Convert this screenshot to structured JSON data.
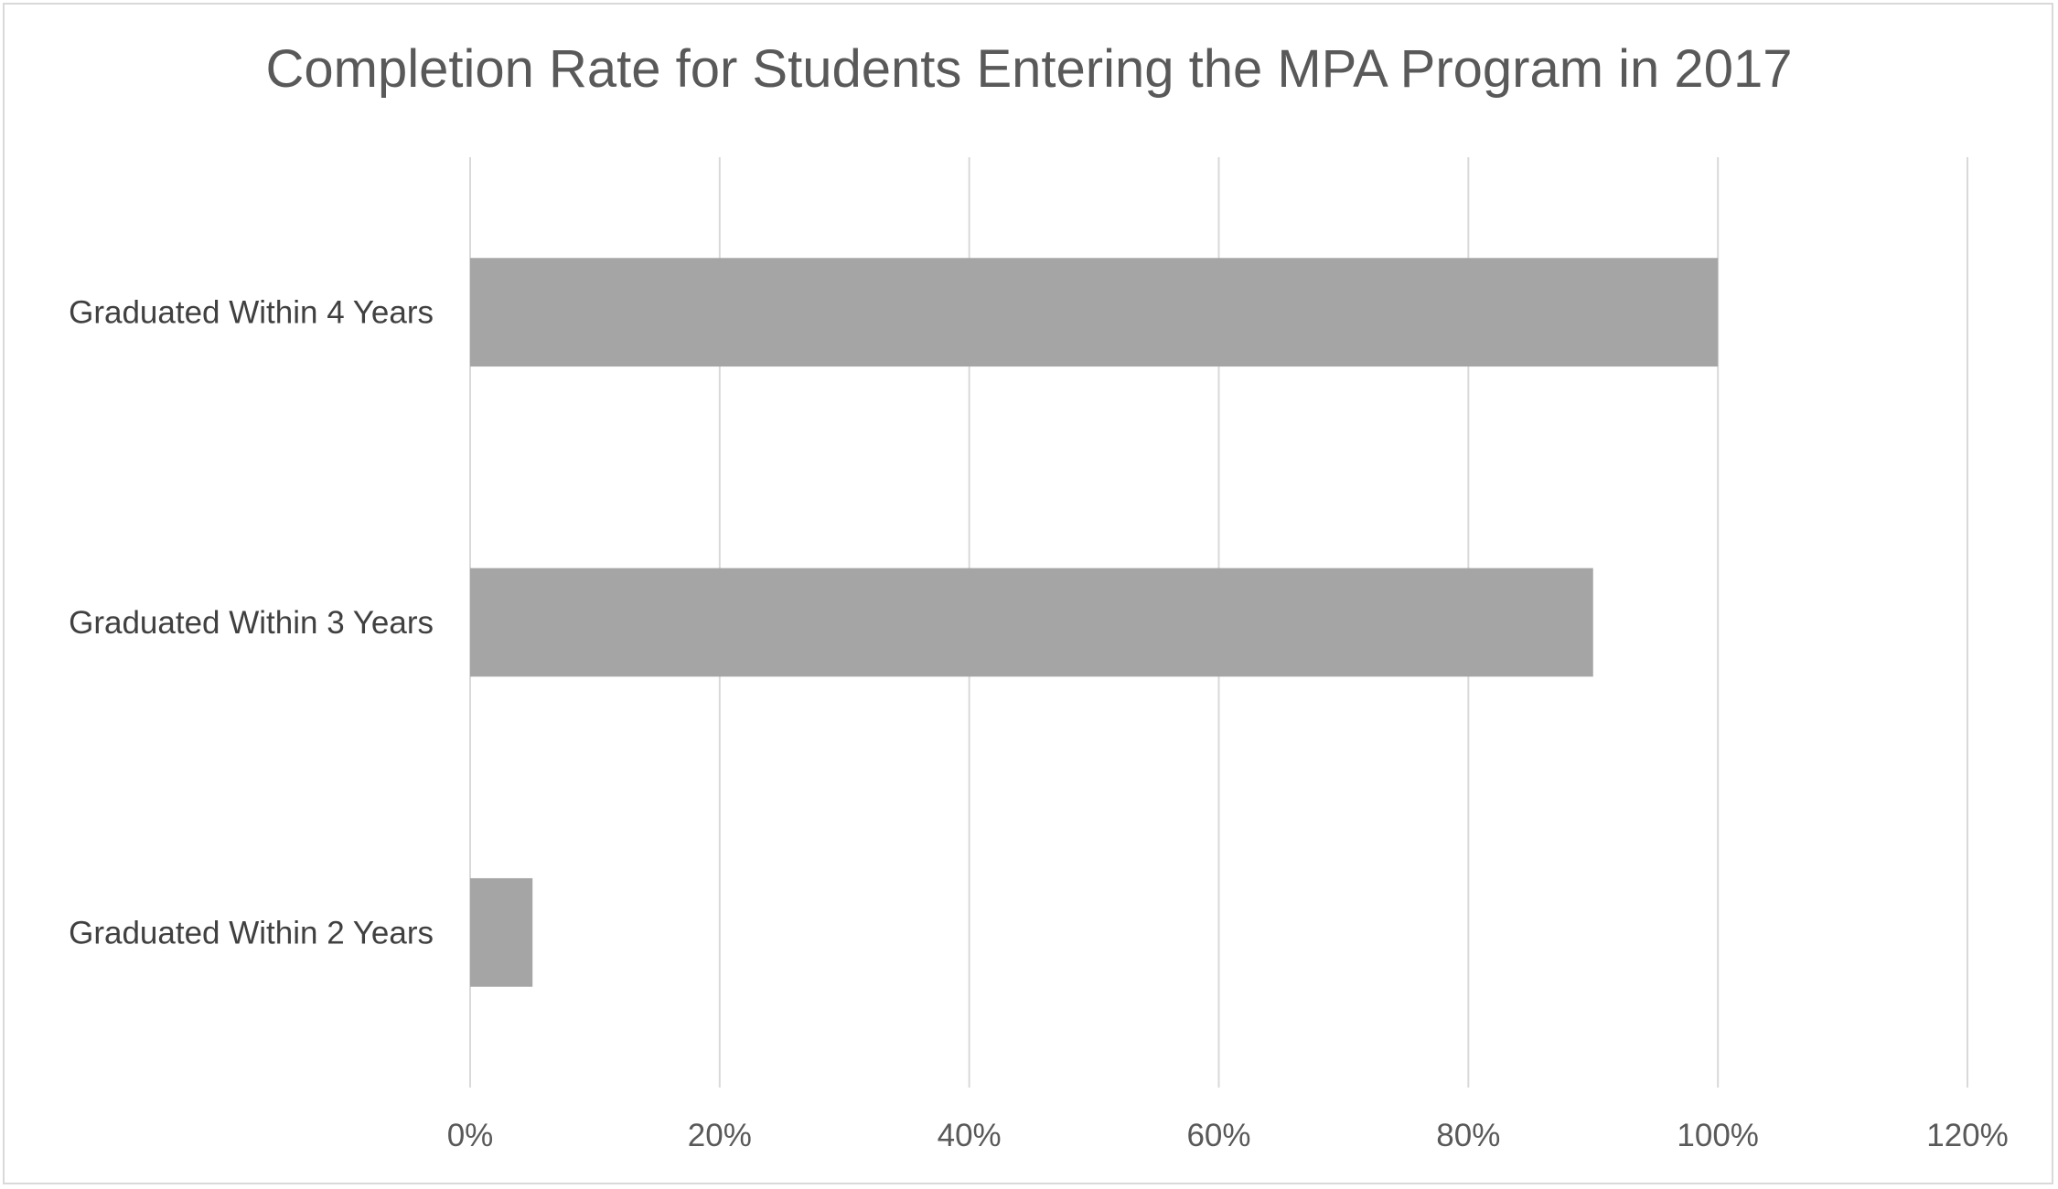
{
  "chart_data": {
    "type": "bar",
    "orientation": "horizontal",
    "title": "Completion Rate for Students Entering the MPA Program in 2017",
    "xlabel": "",
    "ylabel": "",
    "categories": [
      "Graduated Within 4 Years",
      "Graduated Within 3 Years",
      "Graduated Within 2 Years"
    ],
    "values": [
      100,
      90,
      5
    ],
    "value_unit": "%",
    "xlim": [
      0,
      120
    ],
    "x_ticks": [
      "0%",
      "20%",
      "40%",
      "60%",
      "80%",
      "100%",
      "120%"
    ],
    "grid": "vertical major gridlines",
    "legend": "none",
    "bar_color": "#a5a5a5",
    "grid_color": "#d9d9d9"
  }
}
